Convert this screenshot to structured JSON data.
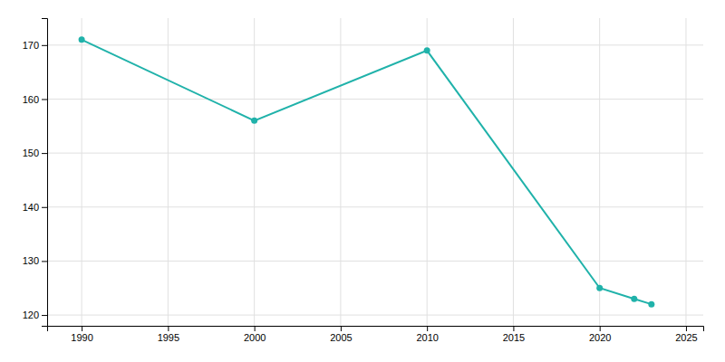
{
  "chart_data": {
    "type": "line",
    "x": [
      1990,
      2000,
      2010,
      2020,
      2022,
      2023
    ],
    "values": [
      171,
      156,
      169,
      125,
      123,
      122
    ],
    "color": "#20B2AA",
    "marker": "circle",
    "xlim": [
      1988,
      2026
    ],
    "ylim": [
      118,
      175
    ],
    "xticks": [
      1990,
      1995,
      2000,
      2005,
      2010,
      2015,
      2020,
      2025
    ],
    "yticks": [
      120,
      130,
      140,
      150,
      160,
      170
    ],
    "grid": true
  }
}
